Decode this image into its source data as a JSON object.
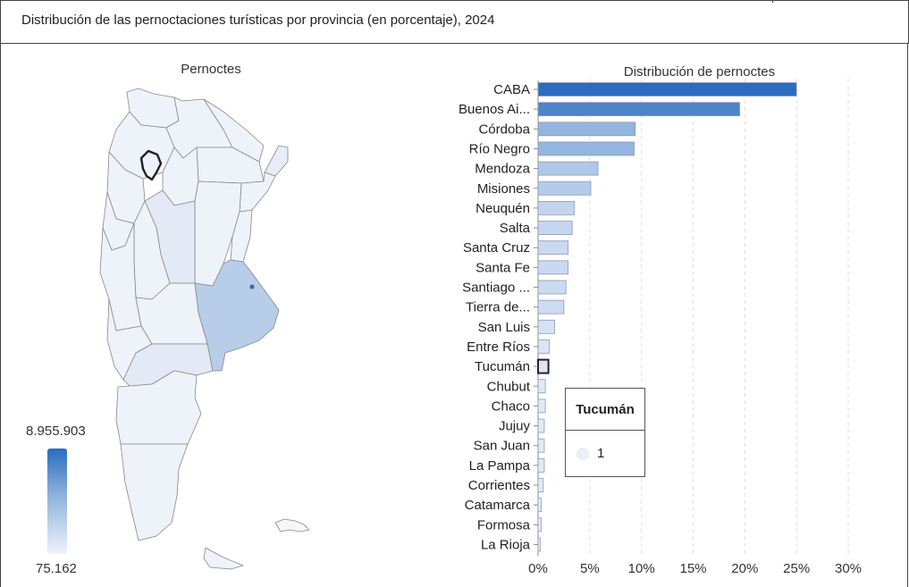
{
  "header": {
    "title": "Distribución de las pernoctaciones turísticas por provincia (en porcentaje), 2024"
  },
  "map": {
    "title": "Pernoctes",
    "legend": {
      "max_label": "8.955.903",
      "min_label": "75.162",
      "color_high": "#2b6cbf",
      "color_low": "#eef3fa"
    },
    "highlighted_province": "Tucumán"
  },
  "chart_data": {
    "type": "bar",
    "orientation": "horizontal",
    "title": "Distribución de pernoctes",
    "categories": [
      "CABA",
      "Buenos Ai...",
      "Córdoba",
      "Río Negro",
      "Mendoza",
      "Misiones",
      "Neuquén",
      "Salta",
      "Santa Cruz",
      "Santa Fe",
      "Santiago ...",
      "Tierra de...",
      "San Luis",
      "Entre Ríos",
      "Tucumán",
      "Chubut",
      "Chaco",
      "Jujuy",
      "San Juan",
      "La Pampa",
      "Corrientes",
      "Catamarca",
      "Formosa",
      "La Rioja"
    ],
    "values": [
      25.0,
      19.5,
      9.4,
      9.3,
      5.8,
      5.1,
      3.5,
      3.3,
      2.9,
      2.9,
      2.7,
      2.5,
      1.6,
      1.1,
      1.0,
      0.7,
      0.7,
      0.6,
      0.6,
      0.6,
      0.5,
      0.3,
      0.3,
      0.2
    ],
    "xlim": [
      0,
      30
    ],
    "x_ticks": [
      "0%",
      "5%",
      "10%",
      "15%",
      "20%",
      "25%",
      "30%"
    ],
    "grid": true,
    "highlighted": "Tucumán"
  },
  "tooltip": {
    "title": "Tucumán",
    "value": "1"
  }
}
